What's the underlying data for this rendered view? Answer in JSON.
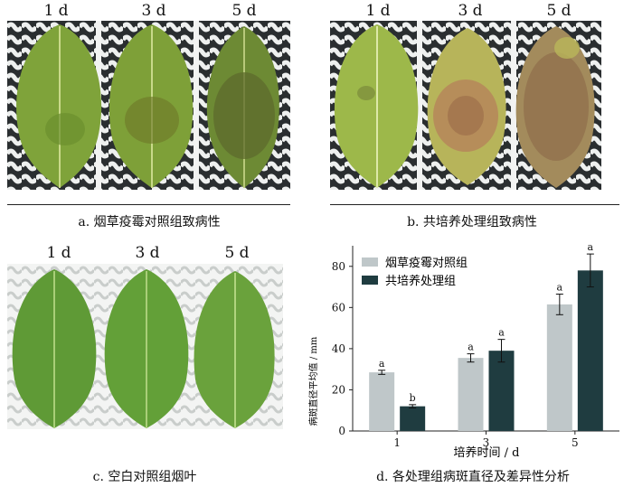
{
  "panel_a": {
    "days": [
      "1 d",
      "3 d",
      "5 d"
    ],
    "caption": "a. 烟草疫霉对照组致病性"
  },
  "panel_b": {
    "days": [
      "1 d",
      "3 d",
      "5 d"
    ],
    "caption": "b. 共培养处理组致病性"
  },
  "panel_c": {
    "days": [
      "1 d",
      "3 d",
      "5 d"
    ],
    "caption": "c. 空白对照组烟叶"
  },
  "panel_d": {
    "caption": "d. 各处理组病斑直径及差异性分析"
  },
  "colors": {
    "control": "#bfc7c9",
    "treatment": "#1f3c40"
  },
  "chart_data": {
    "type": "bar",
    "categories": [
      "1",
      "3",
      "5"
    ],
    "xlabel": "培养时间 / d",
    "ylabel": "病斑直径平均值 / mm",
    "ylim": [
      0,
      90
    ],
    "yticks": [
      0,
      20,
      40,
      60,
      80
    ],
    "legend_position": "top-left",
    "series": [
      {
        "name": "烟草疫霉对照组",
        "values": [
          28.5,
          35.5,
          61.5
        ],
        "errors": [
          1.0,
          2.0,
          5.0
        ],
        "sig": [
          "a",
          "a",
          "a"
        ]
      },
      {
        "name": "共培养处理组",
        "values": [
          12,
          39,
          78
        ],
        "errors": [
          0.8,
          5.5,
          8.0
        ],
        "sig": [
          "b",
          "a",
          "a"
        ]
      }
    ]
  }
}
